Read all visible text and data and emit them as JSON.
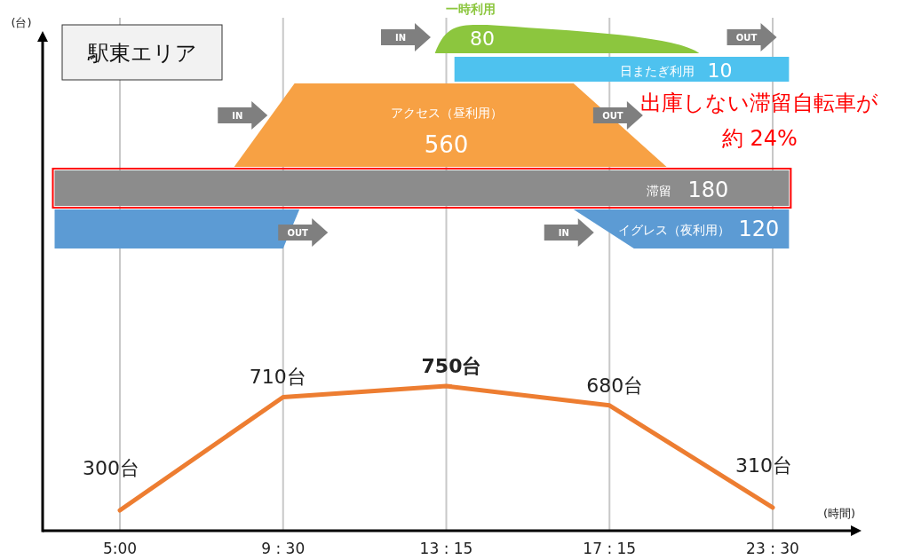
{
  "chart_data": {
    "type": "line",
    "title": "駅東エリア",
    "xlabel": "(時間)",
    "categories": [
      "5:00",
      "9 : 30",
      "13 : 15",
      "17 : 15",
      "23 : 30"
    ],
    "values": [
      300,
      710,
      750,
      680,
      310
    ],
    "value_labels": [
      "300台",
      "710台",
      "750台",
      "680台",
      "310台"
    ],
    "color": "#ed7d31",
    "grid": "x",
    "tick_labels": "x",
    "annotations": [
      "一時利用",
      "80",
      "日またぎ利用",
      "10",
      "アクセス（昼利用）",
      "560",
      "滞留",
      "180",
      "イグレス（夜利用）",
      "120",
      "IN",
      "OUT",
      "IN",
      "OUT",
      "OUT",
      "IN",
      "出庫しない滞留自転車が",
      "約 24%",
      "(台)"
    ]
  }
}
